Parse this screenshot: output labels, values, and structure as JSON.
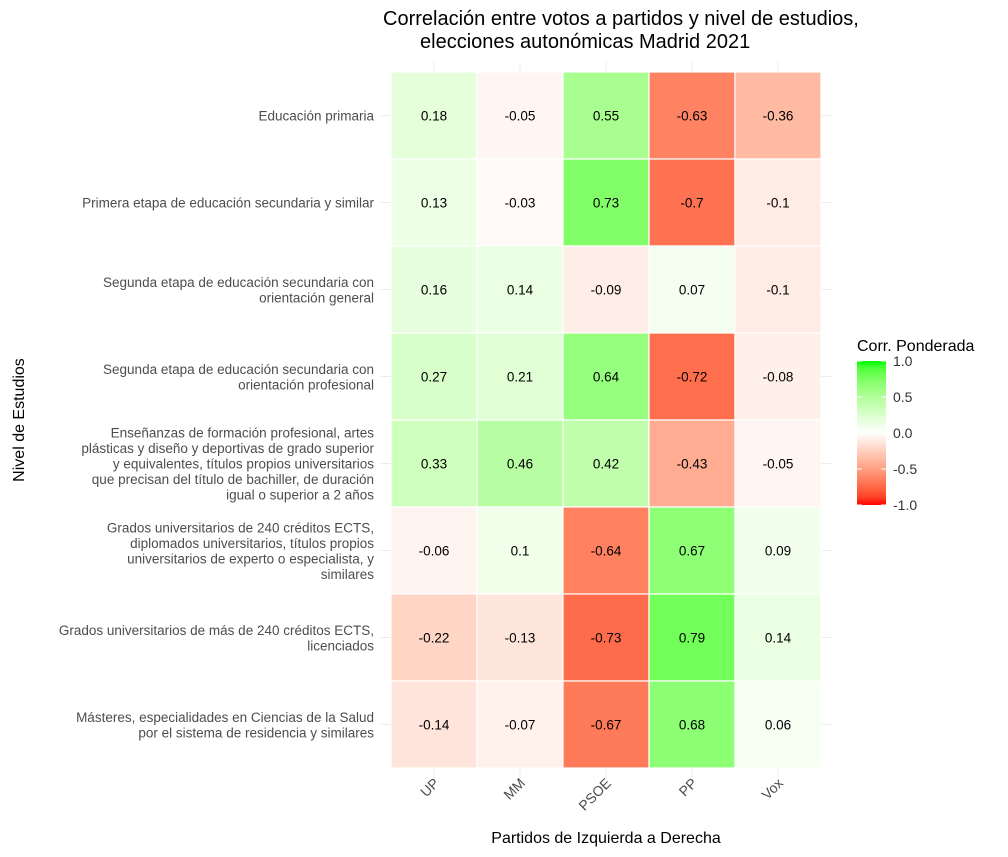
{
  "chart_data": {
    "type": "heatmap",
    "title": [
      "Correlación entre votos a partidos y nivel de estudios,",
      "elecciones autonómicas Madrid 2021"
    ],
    "xlabel": "Partidos de Izquierda a Derecha",
    "ylabel": "Nivel de Estudios",
    "x_categories": [
      "UP",
      "MM",
      "PSOE",
      "PP",
      "Vox"
    ],
    "y_categories": [
      [
        "Educación primaria"
      ],
      [
        "Primera etapa de educación secundaria y similar"
      ],
      [
        "Segunda etapa de educación secundaria con",
        "orientación general"
      ],
      [
        "Segunda etapa de educación secundaria con",
        "orientación profesional"
      ],
      [
        "Enseñanzas de formación profesional, artes",
        "plásticas y diseño y deportivas de grado superior",
        "y equivalentes, títulos propios universitarios",
        "que precisan del título de bachiller, de duración",
        "igual o superior a 2 años"
      ],
      [
        "Grados universitarios de 240 créditos ECTS,",
        "diplomados universitarios, títulos propios",
        "universitarios de experto o especialista, y",
        "similares"
      ],
      [
        "Grados universitarios de más de 240 créditos ECTS,",
        "licenciados"
      ],
      [
        "Másteres, especialidades en Ciencias de la Salud",
        "por el sistema de residencia y similares"
      ]
    ],
    "values": [
      [
        0.18,
        -0.05,
        0.55,
        -0.63,
        -0.36
      ],
      [
        0.13,
        -0.03,
        0.73,
        -0.7,
        -0.1
      ],
      [
        0.16,
        0.14,
        -0.09,
        0.07,
        -0.1
      ],
      [
        0.27,
        0.21,
        0.64,
        -0.72,
        -0.08
      ],
      [
        0.33,
        0.46,
        0.42,
        -0.43,
        -0.05
      ],
      [
        -0.06,
        0.1,
        -0.64,
        0.67,
        0.09
      ],
      [
        -0.22,
        -0.13,
        -0.73,
        0.79,
        0.14
      ],
      [
        -0.14,
        -0.07,
        -0.67,
        0.68,
        0.06
      ]
    ],
    "legend": {
      "title": "Corr. Ponderada",
      "ticks": [
        1.0,
        0.5,
        0.0,
        -0.5,
        -1.0
      ],
      "tick_labels": [
        "1.0",
        "0.5",
        "0.0",
        "-0.5",
        "-1.0"
      ],
      "low_color": "#FF0000",
      "mid_color": "#FFFFFF",
      "high_color": "#00FF00",
      "range": [
        -1,
        1
      ],
      "placement": "right"
    },
    "grid": true
  }
}
